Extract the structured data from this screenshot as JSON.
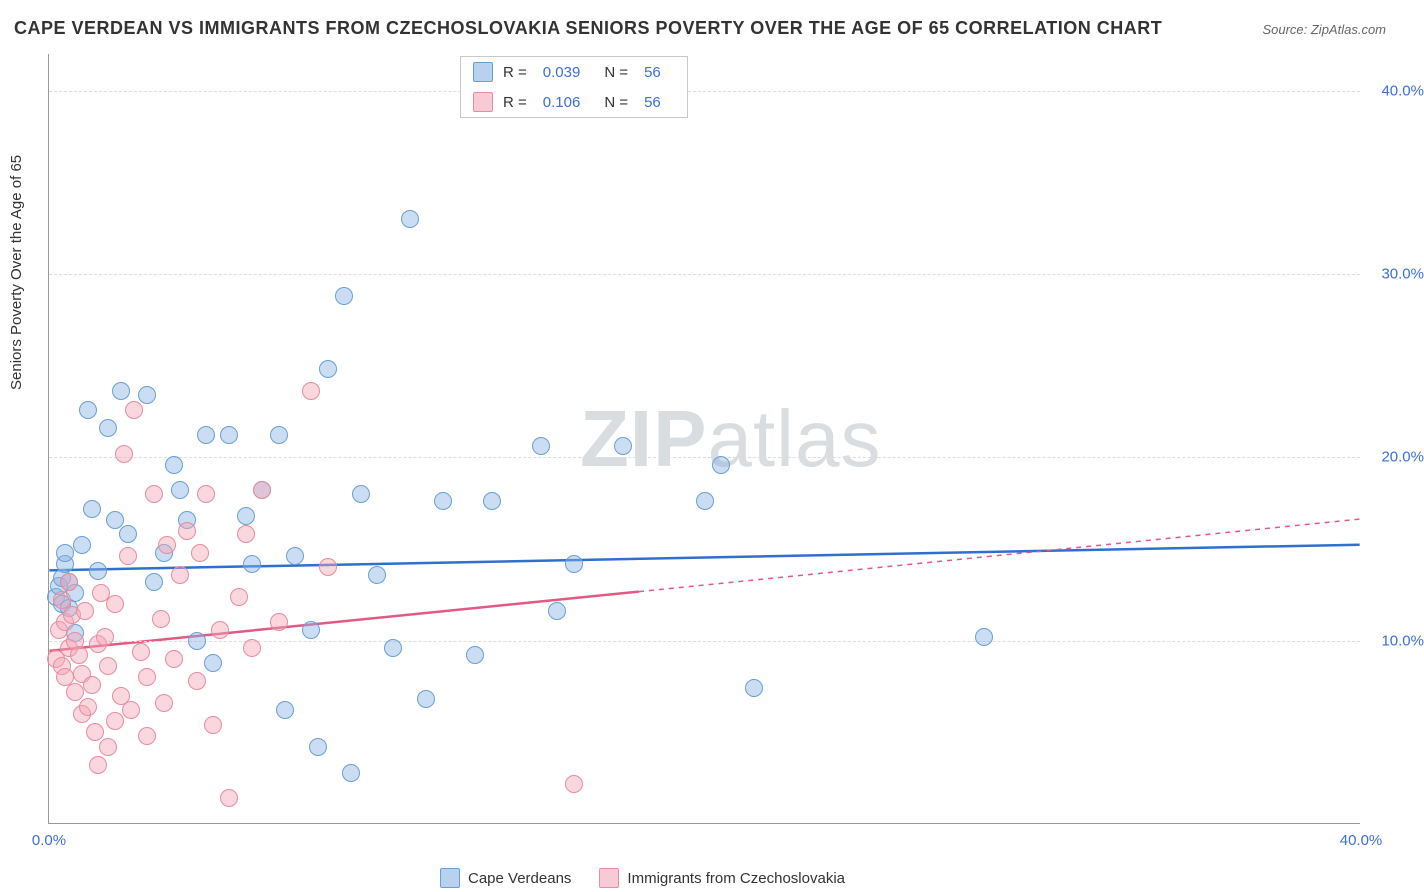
{
  "title": "CAPE VERDEAN VS IMMIGRANTS FROM CZECHOSLOVAKIA SENIORS POVERTY OVER THE AGE OF 65 CORRELATION CHART",
  "source": "Source: ZipAtlas.com",
  "ylabel": "Seniors Poverty Over the Age of 65",
  "watermark_a": "ZIP",
  "watermark_b": "atlas",
  "chart": {
    "type": "scatter",
    "xlim": [
      0,
      40
    ],
    "ylim": [
      0,
      42
    ],
    "xticks": [
      {
        "v": 0,
        "l": "0.0%"
      },
      {
        "v": 40,
        "l": "40.0%"
      }
    ],
    "yticks": [
      {
        "v": 10,
        "l": "10.0%"
      },
      {
        "v": 20,
        "l": "20.0%"
      },
      {
        "v": 30,
        "l": "30.0%"
      },
      {
        "v": 40,
        "l": "40.0%"
      }
    ],
    "grid_color": "#dddddd",
    "background_color": "#ffffff",
    "series": [
      {
        "name": "Cape Verdeans",
        "color_fill": "rgba(137,179,226,0.45)",
        "color_stroke": "#6a9fd4",
        "class": "blue",
        "r": "0.039",
        "n": "56",
        "trend": {
          "y0": 13.8,
          "y1": 15.2,
          "solid_to_x": 40,
          "color": "#2f6fd0"
        },
        "points": [
          [
            0.2,
            12.4
          ],
          [
            0.3,
            13.0
          ],
          [
            0.4,
            13.4
          ],
          [
            0.4,
            12.0
          ],
          [
            0.5,
            14.2
          ],
          [
            0.5,
            14.8
          ],
          [
            0.6,
            11.8
          ],
          [
            0.6,
            13.2
          ],
          [
            0.8,
            12.6
          ],
          [
            0.8,
            10.4
          ],
          [
            1.0,
            15.2
          ],
          [
            1.2,
            22.6
          ],
          [
            1.3,
            17.2
          ],
          [
            1.5,
            13.8
          ],
          [
            1.8,
            21.6
          ],
          [
            2.0,
            16.6
          ],
          [
            2.2,
            23.6
          ],
          [
            2.4,
            15.8
          ],
          [
            3.0,
            23.4
          ],
          [
            3.2,
            13.2
          ],
          [
            3.5,
            14.8
          ],
          [
            3.8,
            19.6
          ],
          [
            4.0,
            18.2
          ],
          [
            4.2,
            16.6
          ],
          [
            4.5,
            10.0
          ],
          [
            4.8,
            21.2
          ],
          [
            5.0,
            8.8
          ],
          [
            5.5,
            21.2
          ],
          [
            6.0,
            16.8
          ],
          [
            6.2,
            14.2
          ],
          [
            6.5,
            18.2
          ],
          [
            7.0,
            21.2
          ],
          [
            7.2,
            6.2
          ],
          [
            7.5,
            14.6
          ],
          [
            8.0,
            10.6
          ],
          [
            8.2,
            4.2
          ],
          [
            8.5,
            24.8
          ],
          [
            9.0,
            28.8
          ],
          [
            9.2,
            2.8
          ],
          [
            9.5,
            18.0
          ],
          [
            10.0,
            13.6
          ],
          [
            10.5,
            9.6
          ],
          [
            11.0,
            33.0
          ],
          [
            11.5,
            6.8
          ],
          [
            12.0,
            17.6
          ],
          [
            13.0,
            9.2
          ],
          [
            13.5,
            17.6
          ],
          [
            15.0,
            20.6
          ],
          [
            15.5,
            11.6
          ],
          [
            16.0,
            14.2
          ],
          [
            17.5,
            20.6
          ],
          [
            20.0,
            17.6
          ],
          [
            20.5,
            19.6
          ],
          [
            21.5,
            7.4
          ],
          [
            28.5,
            10.2
          ]
        ]
      },
      {
        "name": "Immigrants from Czechoslovakia",
        "color_fill": "rgba(244,166,182,0.45)",
        "color_stroke": "#e78ba0",
        "class": "pink",
        "r": "0.106",
        "n": "56",
        "trend": {
          "y0": 9.4,
          "y1": 16.6,
          "solid_to_x": 18,
          "color": "#e05a84"
        },
        "points": [
          [
            0.2,
            9.0
          ],
          [
            0.3,
            10.6
          ],
          [
            0.4,
            12.2
          ],
          [
            0.4,
            8.6
          ],
          [
            0.5,
            11.0
          ],
          [
            0.5,
            8.0
          ],
          [
            0.6,
            9.6
          ],
          [
            0.6,
            13.2
          ],
          [
            0.7,
            11.4
          ],
          [
            0.8,
            7.2
          ],
          [
            0.8,
            10.0
          ],
          [
            0.9,
            9.2
          ],
          [
            1.0,
            6.0
          ],
          [
            1.0,
            8.2
          ],
          [
            1.1,
            11.6
          ],
          [
            1.2,
            6.4
          ],
          [
            1.3,
            7.6
          ],
          [
            1.4,
            5.0
          ],
          [
            1.5,
            9.8
          ],
          [
            1.5,
            3.2
          ],
          [
            1.6,
            12.6
          ],
          [
            1.7,
            10.2
          ],
          [
            1.8,
            4.2
          ],
          [
            1.8,
            8.6
          ],
          [
            2.0,
            5.6
          ],
          [
            2.0,
            12.0
          ],
          [
            2.2,
            7.0
          ],
          [
            2.3,
            20.2
          ],
          [
            2.4,
            14.6
          ],
          [
            2.5,
            6.2
          ],
          [
            2.6,
            22.6
          ],
          [
            2.8,
            9.4
          ],
          [
            3.0,
            4.8
          ],
          [
            3.0,
            8.0
          ],
          [
            3.2,
            18.0
          ],
          [
            3.4,
            11.2
          ],
          [
            3.5,
            6.6
          ],
          [
            3.6,
            15.2
          ],
          [
            3.8,
            9.0
          ],
          [
            4.0,
            13.6
          ],
          [
            4.2,
            16.0
          ],
          [
            4.5,
            7.8
          ],
          [
            4.6,
            14.8
          ],
          [
            4.8,
            18.0
          ],
          [
            5.0,
            5.4
          ],
          [
            5.2,
            10.6
          ],
          [
            5.5,
            1.4
          ],
          [
            5.8,
            12.4
          ],
          [
            6.0,
            15.8
          ],
          [
            6.2,
            9.6
          ],
          [
            6.5,
            18.2
          ],
          [
            7.0,
            11.0
          ],
          [
            8.0,
            23.6
          ],
          [
            8.5,
            14.0
          ],
          [
            16.0,
            2.2
          ]
        ]
      }
    ],
    "legend_bottom": [
      "Cape Verdeans",
      "Immigrants from Czechoslovakia"
    ]
  }
}
